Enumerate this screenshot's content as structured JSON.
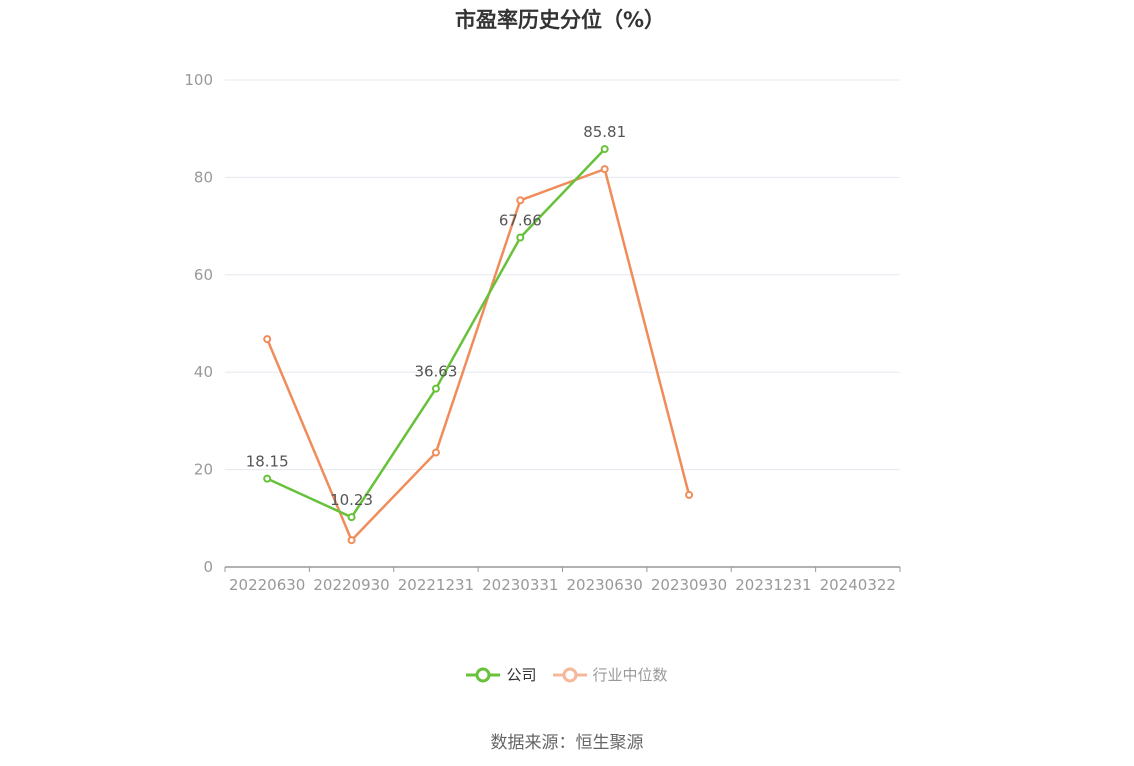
{
  "chart_data": {
    "type": "line",
    "title": "市盈率历史分位（%）",
    "categories": [
      "20220630",
      "20220930",
      "20221231",
      "20230331",
      "20230630",
      "20230930",
      "20231231",
      "20240322"
    ],
    "ylim": [
      0,
      100
    ],
    "yticks": [
      0,
      20,
      40,
      60,
      80,
      100
    ],
    "grid": true,
    "legend_position": "bottom",
    "series": [
      {
        "name": "公司",
        "color": "#67c23a",
        "values": [
          18.15,
          10.23,
          36.63,
          67.66,
          85.81,
          null,
          null,
          null
        ],
        "labels": [
          "18.15",
          "10.23",
          "36.63",
          "67.66",
          "85.81",
          null,
          null,
          null
        ]
      },
      {
        "name": "行业中位数",
        "color": "#f08c5a",
        "legend_color": "#f5b89a",
        "values": [
          46.8,
          5.5,
          23.5,
          75.3,
          81.7,
          14.8,
          null,
          null
        ]
      }
    ]
  },
  "source_text": "数据来源：恒生聚源"
}
